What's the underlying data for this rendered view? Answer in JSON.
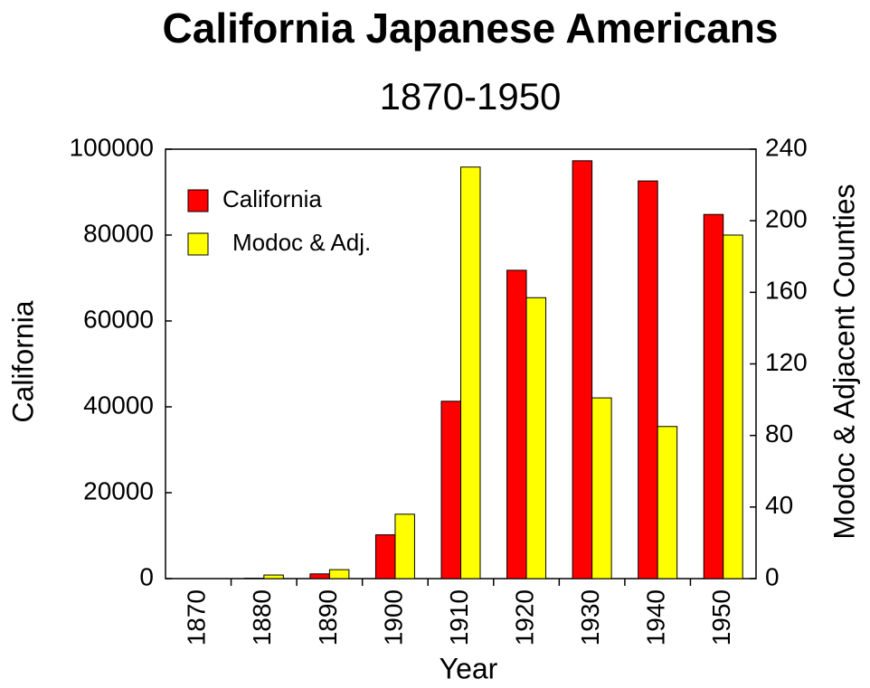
{
  "chart_data": {
    "type": "bar",
    "title": "California Japanese Americans",
    "subtitle": "1870-1950",
    "x_label": "Year",
    "y_label": "California",
    "y2_label": "Modoc & Adjacent Counties",
    "categories": [
      "1870",
      "1880",
      "1890",
      "1900",
      "1910",
      "1920",
      "1930",
      "1940",
      "1950"
    ],
    "series": [
      {
        "name": "California",
        "color": "#ff0000",
        "values": [
          0,
          100,
          1100,
          10200,
          41300,
          71800,
          97300,
          92600,
          84800
        ]
      },
      {
        "name": "Modoc & Adj.",
        "color": "#ffff00",
        "axis": "y2",
        "values": [
          0,
          2,
          5,
          36,
          230,
          157,
          101,
          85,
          192
        ]
      }
    ],
    "ylim": [
      0,
      100000
    ],
    "yticks": [
      0,
      20000,
      40000,
      60000,
      80000,
      100000
    ],
    "y2lim": [
      0,
      240
    ],
    "y2ticks": [
      0,
      40,
      80,
      120,
      160,
      200,
      240
    ],
    "legend": "top-left",
    "grid": false
  }
}
